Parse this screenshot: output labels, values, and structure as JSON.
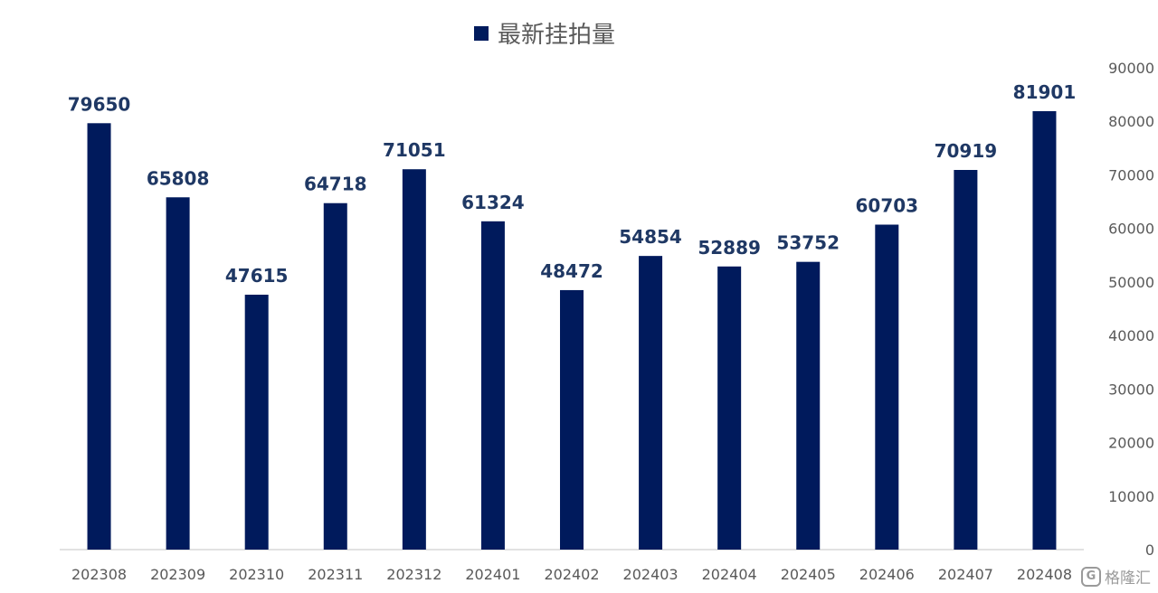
{
  "chart_data": {
    "type": "bar",
    "categories": [
      "202308",
      "202309",
      "202310",
      "202311",
      "202312",
      "202401",
      "202402",
      "202403",
      "202404",
      "202405",
      "202406",
      "202407",
      "202408"
    ],
    "series": [
      {
        "name": "最新挂拍量",
        "values": [
          79650,
          65808,
          47615,
          64718,
          71051,
          61324,
          48472,
          54854,
          52889,
          53752,
          60703,
          70919,
          81901
        ]
      }
    ],
    "ylim": [
      0,
      90000
    ],
    "yticks": [
      0,
      10000,
      20000,
      30000,
      40000,
      50000,
      60000,
      70000,
      80000,
      90000
    ],
    "y_axis_side": "right",
    "grid": false,
    "legend_position": "top-center",
    "bar_color": "#001a5c",
    "label_color": "#1f3864",
    "data_labels": true
  },
  "watermark": {
    "icon": "G",
    "text": "格隆汇"
  }
}
